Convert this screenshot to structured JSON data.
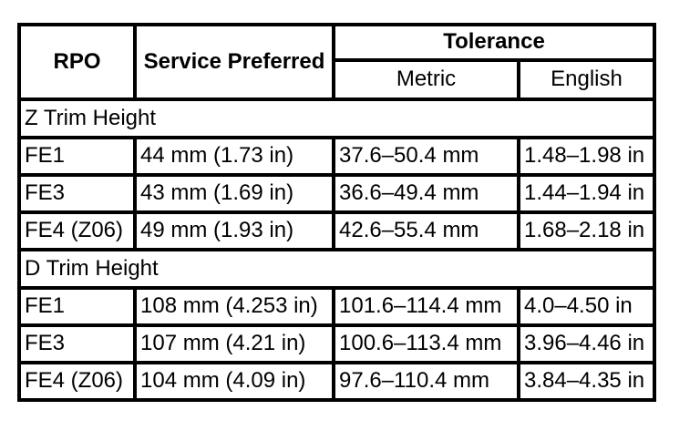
{
  "header": {
    "rpo": "RPO",
    "service_preferred": "Service Preferred",
    "tolerance": "Tolerance",
    "metric": "Metric",
    "english": "English"
  },
  "sections": [
    {
      "title": "Z Trim Height",
      "rows": [
        {
          "rpo": "FE1",
          "service_preferred": "44 mm (1.73 in)",
          "metric": "37.6–50.4 mm",
          "english": "1.48–1.98 in"
        },
        {
          "rpo": "FE3",
          "service_preferred": "43 mm (1.69 in)",
          "metric": "36.6–49.4 mm",
          "english": "1.44–1.94 in"
        },
        {
          "rpo": "FE4 (Z06)",
          "service_preferred": "49 mm (1.93 in)",
          "metric": "42.6–55.4 mm",
          "english": "1.68–2.18 in"
        }
      ]
    },
    {
      "title": "D Trim Height",
      "rows": [
        {
          "rpo": "FE1",
          "service_preferred": "108 mm (4.253 in)",
          "metric": "101.6–114.4 mm",
          "english": "4.0–4.50 in"
        },
        {
          "rpo": "FE3",
          "service_preferred": "107 mm (4.21 in)",
          "metric": "100.6–113.4 mm",
          "english": "3.96–4.46 in"
        },
        {
          "rpo": "FE4 (Z06)",
          "service_preferred": "104 mm (4.09 in)",
          "metric": "97.6–110.4 mm",
          "english": "3.84–4.35 in"
        }
      ]
    }
  ]
}
